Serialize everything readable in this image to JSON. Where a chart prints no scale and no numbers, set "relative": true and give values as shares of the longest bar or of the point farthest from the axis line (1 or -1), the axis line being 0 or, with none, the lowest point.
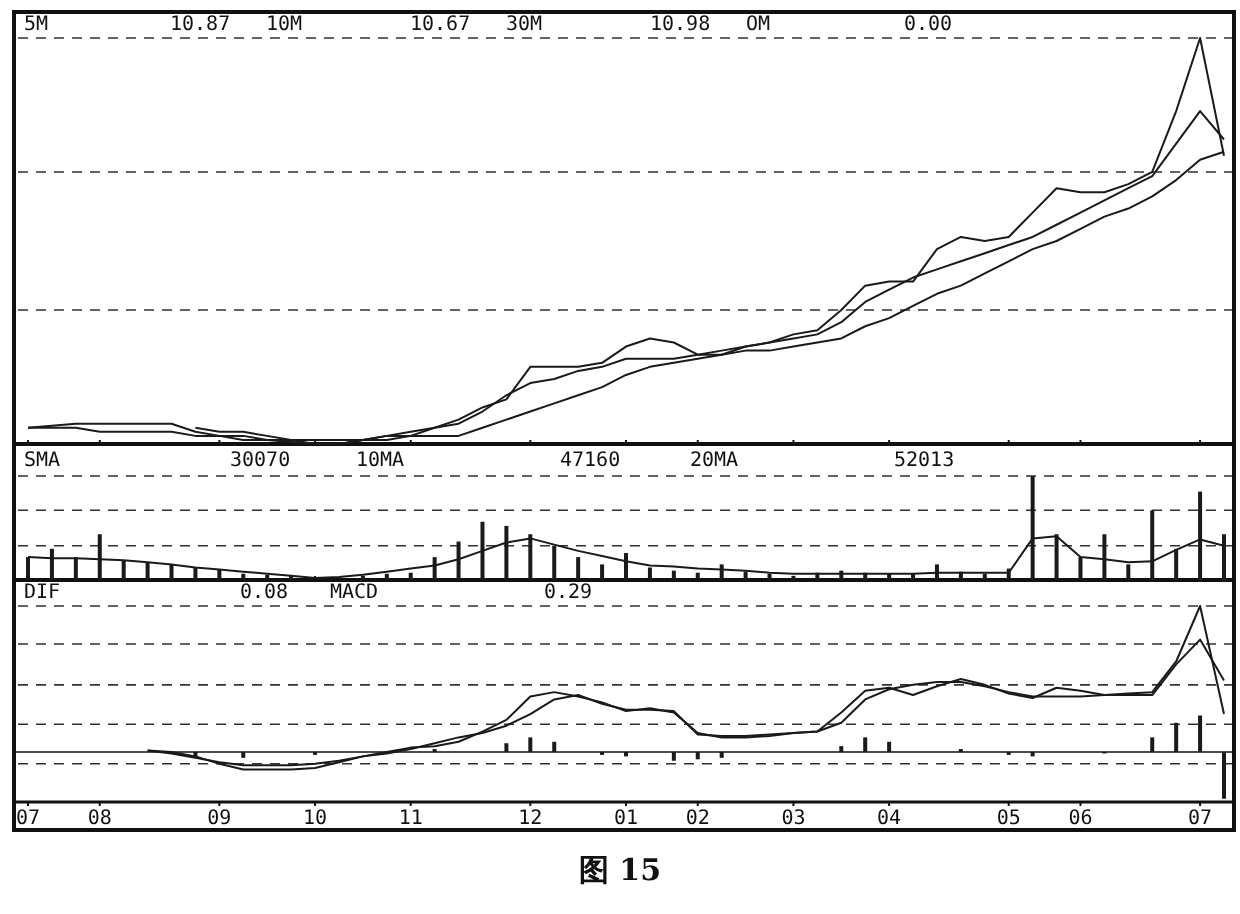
{
  "chart_data": [
    {
      "type": "line",
      "relative": true,
      "tick_labels": false,
      "ref_lines": [
        {
          "axis": "y",
          "value": 0.33,
          "line_style": "dashed",
          "color": "#333333"
        },
        {
          "axis": "y",
          "value": 0.67,
          "line_style": "dashed",
          "color": "#333333"
        },
        {
          "axis": "y",
          "value": 1.0,
          "line_style": "dashed",
          "color": "#333333"
        }
      ],
      "categories": [
        "07",
        null,
        null,
        "08",
        null,
        null,
        null,
        null,
        "09",
        null,
        null,
        null,
        "10",
        null,
        null,
        null,
        "11",
        null,
        null,
        null,
        null,
        "12",
        null,
        null,
        null,
        "01",
        null,
        null,
        "02",
        null,
        null,
        null,
        "03",
        null,
        null,
        null,
        "04",
        null,
        null,
        null,
        null,
        "05",
        null,
        null,
        "06",
        null,
        null,
        null,
        null,
        "07",
        null
      ],
      "annotations": [
        "5M",
        "10.87",
        "10M",
        "10.67",
        "30M",
        "10.98",
        "OM",
        "0.00"
      ],
      "series": [
        {
          "color": "#1a1a1a",
          "values": [
            0.04,
            0.045,
            0.05,
            0.05,
            0.05,
            0.05,
            0.05,
            0.03,
            0.02,
            0.01,
            0.01,
            0.005,
            0,
            0,
            0.01,
            0.02,
            0.02,
            0.04,
            0.06,
            0.09,
            0.11,
            0.19,
            0.19,
            0.19,
            0.2,
            0.24,
            0.26,
            0.25,
            0.22,
            0.23,
            0.24,
            0.25,
            0.27,
            0.28,
            0.33,
            0.39,
            0.4,
            0.4,
            0.48,
            0.51,
            0.5,
            0.51,
            0.57,
            0.63,
            0.62,
            0.62,
            0.64,
            0.67,
            0.82,
            1.0,
            0.71
          ]
        },
        {
          "color": "#1a1a1a",
          "values": [
            null,
            null,
            null,
            null,
            null,
            null,
            null,
            0.04,
            0.03,
            0.03,
            0.02,
            0.01,
            0,
            0,
            0.01,
            0.02,
            0.03,
            0.04,
            0.05,
            0.08,
            0.12,
            0.15,
            0.16,
            0.18,
            0.19,
            0.21,
            0.21,
            0.21,
            0.22,
            0.22,
            0.24,
            0.25,
            0.26,
            0.27,
            0.3,
            0.35,
            0.38,
            0.41,
            0.43,
            0.45,
            0.47,
            0.49,
            0.51,
            0.54,
            0.57,
            0.6,
            0.63,
            0.66,
            0.74,
            0.82,
            0.75
          ]
        },
        {
          "color": "#1a1a1a",
          "values": [
            0.04,
            0.04,
            0.04,
            0.03,
            0.03,
            0.03,
            0.03,
            0.02,
            0.02,
            0.02,
            0.01,
            0.01,
            0.01,
            0.01,
            0.01,
            0.01,
            0.02,
            0.02,
            0.02,
            0.04,
            0.06,
            0.08,
            0.1,
            0.12,
            0.14,
            0.17,
            0.19,
            0.2,
            0.21,
            0.22,
            0.23,
            0.23,
            0.24,
            0.25,
            0.26,
            0.29,
            0.31,
            0.34,
            0.37,
            0.39,
            0.42,
            0.45,
            0.48,
            0.5,
            0.53,
            0.56,
            0.58,
            0.61,
            0.65,
            0.7,
            0.72
          ]
        }
      ]
    },
    {
      "type": "bar",
      "relative": true,
      "tick_labels": false,
      "ref_lines": [
        {
          "axis": "y",
          "value": 0.33,
          "line_style": "dashed",
          "color": "#333333"
        },
        {
          "axis": "y",
          "value": 0.67,
          "line_style": "dashed",
          "color": "#333333"
        },
        {
          "axis": "y",
          "value": 1.0,
          "line_style": "dashed",
          "color": "#333333"
        }
      ],
      "categories": [
        "07",
        null,
        null,
        "08",
        null,
        null,
        null,
        null,
        "09",
        null,
        null,
        null,
        "10",
        null,
        null,
        null,
        "11",
        null,
        null,
        null,
        null,
        "12",
        null,
        null,
        null,
        "01",
        null,
        null,
        "02",
        null,
        null,
        null,
        "03",
        null,
        null,
        null,
        "04",
        null,
        null,
        null,
        null,
        "05",
        null,
        null,
        "06",
        null,
        null,
        null,
        null,
        "07",
        null
      ],
      "annotations": [
        "SMA",
        "30070",
        "10MA",
        "47160",
        "20MA",
        "52013"
      ],
      "series": [
        {
          "color": "#1a1a1a",
          "values": [
            0.22,
            0.3,
            0.22,
            0.44,
            0.19,
            0.17,
            0.15,
            0.12,
            0.1,
            0.06,
            0.05,
            0.04,
            null,
            null,
            0.04,
            0.06,
            0.07,
            0.22,
            0.37,
            0.56,
            0.52,
            0.44,
            0.33,
            0.22,
            0.15,
            0.26,
            0.12,
            0.09,
            0.07,
            0.15,
            0.08,
            0.06,
            0.04,
            0.07,
            0.09,
            0.07,
            0.06,
            0.06,
            0.15,
            0.08,
            0.06,
            0.11,
            1.0,
            0.44,
            0.22,
            0.44,
            0.15,
            0.67,
            0.3,
            0.85,
            0.44
          ]
        },
        {
          "type": "line",
          "color": "#1a1a1a",
          "values": [
            0.22,
            0.21,
            0.21,
            0.2,
            0.19,
            0.17,
            0.15,
            0.12,
            0.1,
            0.08,
            0.06,
            0.04,
            0.02,
            0.03,
            0.05,
            0.08,
            0.11,
            0.14,
            0.2,
            0.28,
            0.36,
            0.4,
            0.34,
            0.28,
            0.23,
            0.18,
            0.14,
            0.13,
            0.11,
            0.1,
            0.09,
            0.07,
            0.06,
            0.06,
            0.06,
            0.06,
            0.06,
            0.06,
            0.07,
            0.07,
            0.07,
            0.07,
            0.4,
            0.42,
            0.22,
            0.2,
            0.17,
            0.18,
            0.29,
            0.39,
            0.33
          ]
        }
      ]
    },
    {
      "type": "line",
      "relative": true,
      "ref_lines": [
        {
          "axis": "y",
          "value": -0.08,
          "line_style": "dashed",
          "color": "#333333"
        },
        {
          "axis": "y",
          "value": 0.19,
          "line_style": "dashed",
          "color": "#333333"
        },
        {
          "axis": "y",
          "value": 0.46,
          "line_style": "dashed",
          "color": "#333333"
        },
        {
          "axis": "y",
          "value": 0.74,
          "line_style": "dashed",
          "color": "#333333"
        },
        {
          "axis": "y",
          "value": 1.0,
          "line_style": "dashed",
          "color": "#333333"
        }
      ],
      "categories": [
        "07",
        null,
        null,
        "08",
        null,
        null,
        null,
        null,
        "09",
        null,
        null,
        null,
        "10",
        null,
        null,
        null,
        "11",
        null,
        null,
        null,
        null,
        "12",
        null,
        null,
        null,
        "01",
        null,
        null,
        "02",
        null,
        null,
        null,
        "03",
        null,
        null,
        null,
        "04",
        null,
        null,
        null,
        null,
        "05",
        null,
        null,
        "06",
        null,
        null,
        null,
        null,
        "07",
        null
      ],
      "annotations": [
        "DIF",
        "0.08",
        "MACD",
        "0.29",
        "图 15"
      ],
      "series": [
        {
          "color": "#1a1a1a",
          "values": [
            null,
            null,
            null,
            null,
            null,
            0.01,
            0,
            -0.03,
            -0.08,
            -0.12,
            -0.12,
            -0.12,
            -0.11,
            -0.07,
            -0.03,
            0,
            0.03,
            0.04,
            0.07,
            0.14,
            0.22,
            0.38,
            0.41,
            0.38,
            0.34,
            0.28,
            0.3,
            0.27,
            0.13,
            0.1,
            0.1,
            0.11,
            0.13,
            0.14,
            0.27,
            0.42,
            0.44,
            0.39,
            0.45,
            0.5,
            0.46,
            0.4,
            0.37,
            0.44,
            0.42,
            0.39,
            0.4,
            0.41,
            0.62,
            1.0,
            0.26
          ]
        },
        {
          "color": "#1a1a1a",
          "values": [
            null,
            null,
            null,
            null,
            null,
            0.01,
            -0.01,
            -0.04,
            -0.07,
            -0.09,
            -0.09,
            -0.09,
            -0.08,
            -0.06,
            -0.03,
            -0.01,
            0.02,
            0.06,
            0.1,
            0.13,
            0.18,
            0.26,
            0.36,
            0.39,
            0.33,
            0.29,
            0.29,
            0.28,
            0.12,
            0.11,
            0.11,
            0.12,
            0.13,
            0.14,
            0.2,
            0.36,
            0.43,
            0.46,
            0.48,
            0.48,
            0.45,
            0.41,
            0.38,
            0.38,
            0.38,
            0.39,
            0.39,
            0.39,
            0.6,
            0.77,
            0.49
          ]
        },
        {
          "type": "bar",
          "color": "#1a1a1a",
          "values": [
            null,
            null,
            null,
            null,
            null,
            null,
            null,
            -0.03,
            null,
            -0.04,
            null,
            null,
            -0.02,
            null,
            null,
            null,
            null,
            0.02,
            null,
            null,
            0.06,
            0.1,
            0.07,
            null,
            -0.02,
            -0.03,
            null,
            -0.06,
            -0.05,
            -0.04,
            null,
            null,
            null,
            null,
            0.04,
            0.1,
            0.07,
            null,
            null,
            0.02,
            null,
            -0.02,
            -0.03,
            null,
            null,
            -0.01,
            null,
            0.1,
            0.2,
            0.25,
            -0.32
          ]
        }
      ]
    }
  ]
}
